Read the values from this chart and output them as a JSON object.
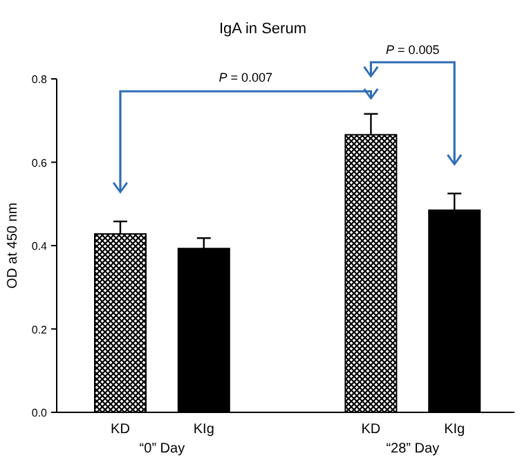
{
  "chart_data": {
    "type": "bar",
    "title": "IgA in Serum",
    "ylabel": "OD at 450 nm",
    "categories": [
      "KD",
      "KIg",
      null,
      "KD",
      "KIg"
    ],
    "values": [
      0.428,
      0.393,
      null,
      0.666,
      0.485
    ],
    "errors": [
      0.03,
      0.025,
      null,
      0.05,
      0.04
    ],
    "colors": [
      "#ffffff",
      "#000000",
      null,
      "#ffffff",
      "#000000"
    ],
    "ylim": [
      0,
      0.8
    ],
    "yticks": [
      {
        "value": 0,
        "label": "0.0"
      },
      0.2,
      0.4,
      0.6,
      0.8
    ],
    "annotations": [
      "P = 0.007",
      "P = 0.005",
      "“0” Day",
      "“28” Day"
    ]
  }
}
